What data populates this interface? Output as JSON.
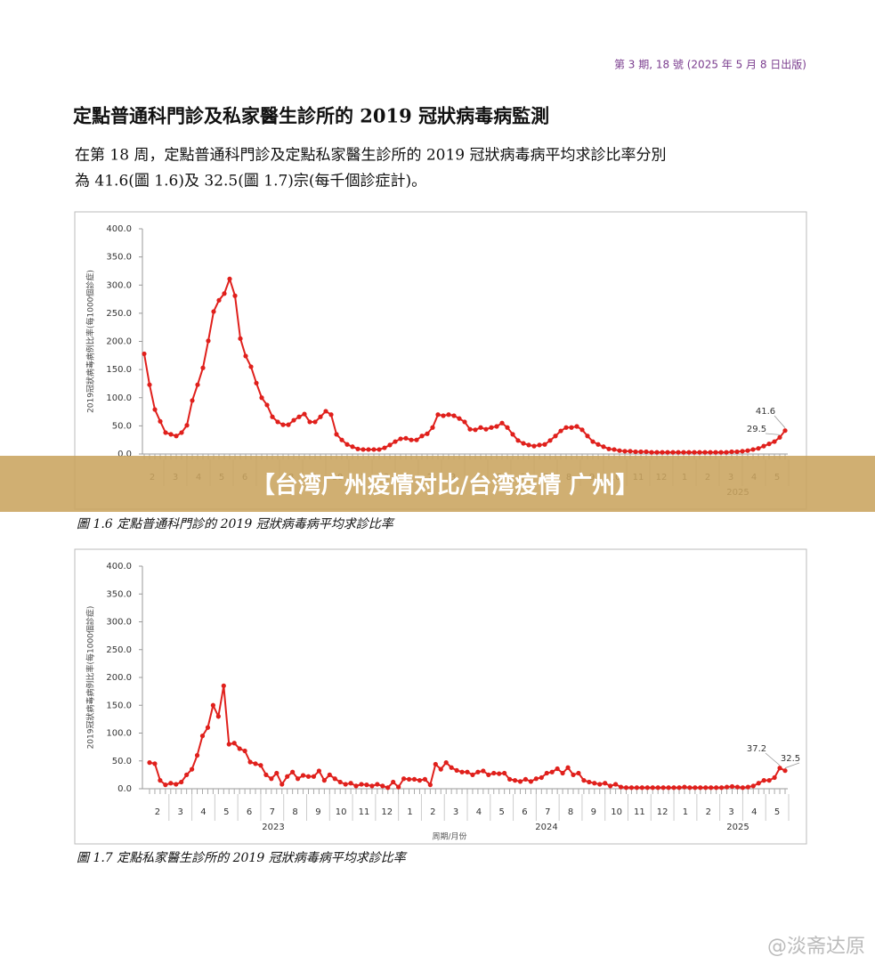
{
  "header": {
    "issue": "第 3 期, 18 號 (2025 年 5 月 8 日出版)",
    "title": "定點普通科門診及私家醫生診所的 2019 冠狀病毒病監測",
    "intro": [
      "在第 18 周，定點普通科門診及定點私家醫生診所的 2019 冠狀病毒病平均求診比率分別",
      "為 41.6(圖 1.6)及 32.5(圖 1.7)宗(每千個診症計)。"
    ]
  },
  "banner": "【台湾广州疫情对比/台湾疫情 广州】",
  "watermark": "@淡斋达原",
  "chart_data": [
    {
      "type": "line",
      "caption": "圖 1.6  定點普通科門診的 2019 冠狀病毒病平均求診比率",
      "ylabel": "2019冠狀病毒病例比率(每1000個診症)",
      "color": "#e0201c",
      "ylim": [
        0,
        400
      ],
      "yticks": [
        {
          "value": 0,
          "label": "0.0"
        },
        {
          "value": 50,
          "label": "50.0"
        },
        {
          "value": 100,
          "label": "100.0"
        },
        {
          "value": 150,
          "label": "150.0"
        },
        {
          "value": 200,
          "label": "200.0"
        },
        {
          "value": 250,
          "label": "250.0"
        },
        {
          "value": 300,
          "label": "300.0"
        },
        {
          "value": 350,
          "label": "350.0"
        },
        {
          "value": 400,
          "label": "400.0"
        }
      ],
      "months": [
        2,
        3,
        4,
        5,
        6,
        7,
        8,
        9,
        10,
        11,
        12,
        1,
        2,
        3,
        4,
        5,
        6,
        7,
        8,
        9,
        10,
        11,
        12,
        1,
        2,
        3,
        4,
        5
      ],
      "years": [
        "2025"
      ],
      "values": [
        178,
        123,
        79,
        58,
        38,
        35,
        32,
        38,
        51,
        95,
        123,
        153,
        201,
        253,
        273,
        285,
        311,
        281,
        205,
        174,
        155,
        126,
        100,
        87,
        66,
        57,
        52,
        52,
        60,
        66,
        71,
        57,
        57,
        66,
        76,
        70,
        35,
        25,
        17,
        13,
        9,
        8,
        8,
        8,
        8,
        11,
        16,
        22,
        27,
        28,
        25,
        25,
        32,
        36,
        47,
        70,
        68,
        70,
        68,
        63,
        57,
        44,
        43,
        47,
        44,
        47,
        49,
        55,
        47,
        35,
        24,
        19,
        16,
        14,
        16,
        17,
        24,
        32,
        41,
        47,
        47,
        49,
        43,
        32,
        22,
        17,
        13,
        9,
        8,
        6,
        5,
        5,
        4,
        4,
        4,
        3,
        3,
        3,
        3,
        3,
        3,
        3,
        3,
        3,
        3,
        3,
        3,
        3,
        3,
        3,
        4,
        4,
        5,
        6,
        8,
        10,
        14,
        18,
        22,
        29.5,
        41.6
      ]
    },
    {
      "type": "line",
      "caption": "圖 1.7  定點私家醫生診所的 2019 冠狀病毒病平均求診比率",
      "ylabel": "2019冠狀病毒病例比率(每1000個診症)",
      "xlabel": "周期/月份",
      "color": "#e0201c",
      "ylim": [
        0,
        400
      ],
      "yticks": [
        {
          "value": 0,
          "label": "0.0"
        },
        {
          "value": 50,
          "label": "50.0"
        },
        {
          "value": 100,
          "label": "100.0"
        },
        {
          "value": 150,
          "label": "150.0"
        },
        {
          "value": 200,
          "label": "200.0"
        },
        {
          "value": 250,
          "label": "250.0"
        },
        {
          "value": 300,
          "label": "300.0"
        },
        {
          "value": 350,
          "label": "350.0"
        },
        {
          "value": 400,
          "label": "400.0"
        }
      ],
      "months": [
        2,
        3,
        4,
        5,
        6,
        7,
        8,
        9,
        10,
        11,
        12,
        1,
        2,
        3,
        4,
        5,
        6,
        7,
        8,
        9,
        10,
        11,
        12,
        1,
        2,
        3,
        4,
        5
      ],
      "years": [
        "2023",
        "2024",
        "2025"
      ],
      "values": [
        47,
        45,
        15,
        7,
        10,
        8,
        12,
        25,
        35,
        60,
        95,
        110,
        150,
        130,
        185,
        80,
        82,
        72,
        68,
        48,
        45,
        42,
        25,
        18,
        28,
        8,
        22,
        30,
        18,
        24,
        22,
        22,
        32,
        15,
        25,
        18,
        12,
        8,
        10,
        5,
        8,
        7,
        5,
        8,
        5,
        2,
        12,
        3,
        18,
        17,
        17,
        15,
        17,
        7,
        44,
        35,
        47,
        38,
        33,
        30,
        30,
        25,
        30,
        32,
        25,
        28,
        27,
        28,
        17,
        15,
        13,
        17,
        13,
        18,
        20,
        28,
        30,
        36,
        28,
        38,
        25,
        28,
        15,
        12,
        10,
        8,
        10,
        5,
        8,
        3,
        2,
        2,
        2,
        2,
        2,
        2,
        2,
        2,
        2,
        2,
        2,
        3,
        2,
        2,
        2,
        2,
        2,
        2,
        2,
        3,
        4,
        3,
        2,
        3,
        5,
        10,
        15,
        15,
        20,
        37.2,
        32.5
      ]
    }
  ]
}
